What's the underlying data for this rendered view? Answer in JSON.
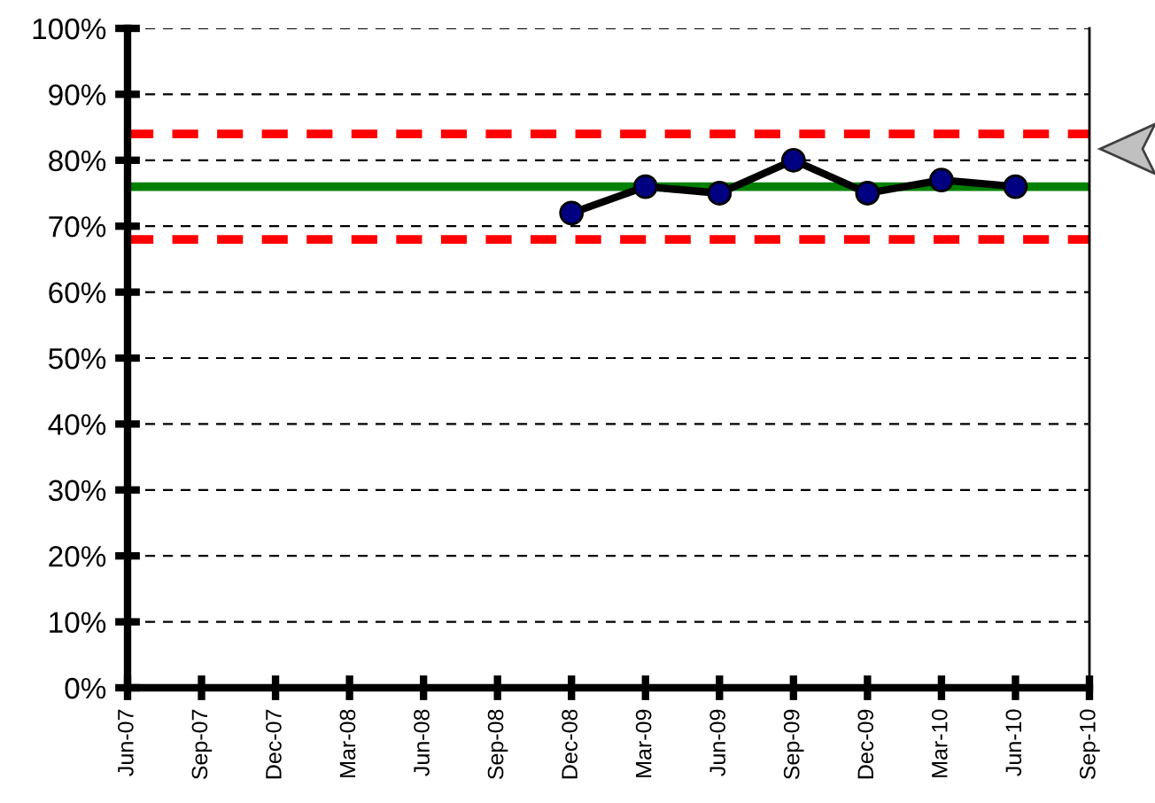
{
  "chart_data": {
    "type": "line",
    "categories": [
      "Jun-07",
      "Sep-07",
      "Dec-07",
      "Mar-08",
      "Jun-08",
      "Sep-08",
      "Dec-08",
      "Mar-09",
      "Jun-09",
      "Sep-09",
      "Dec-09",
      "Mar-10",
      "Jun-10",
      "Sep-10"
    ],
    "series": [
      {
        "color": "#000000",
        "values": [
          null,
          null,
          null,
          null,
          null,
          null,
          72,
          76,
          75,
          80,
          75,
          77,
          76,
          null
        ]
      }
    ],
    "marker": "circle",
    "line_style": "solid",
    "ylim": [
      0,
      100
    ],
    "yticks": [
      {
        "value": 0,
        "label": "0%"
      },
      {
        "value": 10,
        "label": "10%"
      },
      {
        "value": 20,
        "label": "20%"
      },
      {
        "value": 30,
        "label": "30%"
      },
      {
        "value": 40,
        "label": "40%"
      },
      {
        "value": 50,
        "label": "50%"
      },
      {
        "value": 60,
        "label": "60%"
      },
      {
        "value": 70,
        "label": "70%"
      },
      {
        "value": 80,
        "label": "80%"
      },
      {
        "value": 90,
        "label": "90%"
      },
      {
        "value": 100,
        "label": "100%"
      }
    ],
    "grid": "y",
    "ref_lines": [
      {
        "axis": "y",
        "value": 76,
        "color": "#008000",
        "line_style": "solid"
      },
      {
        "axis": "y",
        "value": 84,
        "color": "#ff0000",
        "line_style": "dashed"
      },
      {
        "axis": "y",
        "value": 68,
        "color": "#ff0000",
        "line_style": "dashed"
      }
    ]
  }
}
